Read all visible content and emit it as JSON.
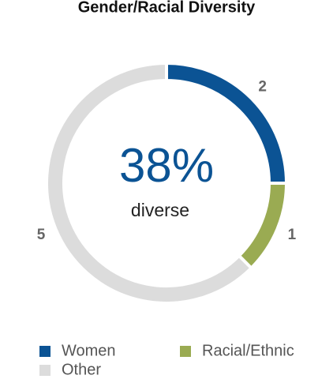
{
  "chart_data": {
    "type": "donut",
    "title": "Gender/Racial Diversity",
    "center_label": "38%",
    "center_sublabel": "diverse",
    "categories": [
      "Women",
      "Racial/Ethnic",
      "Other"
    ],
    "values": [
      2,
      1,
      5
    ],
    "colors": [
      "#0b5394",
      "#9aab52",
      "#dcdcdc"
    ]
  }
}
